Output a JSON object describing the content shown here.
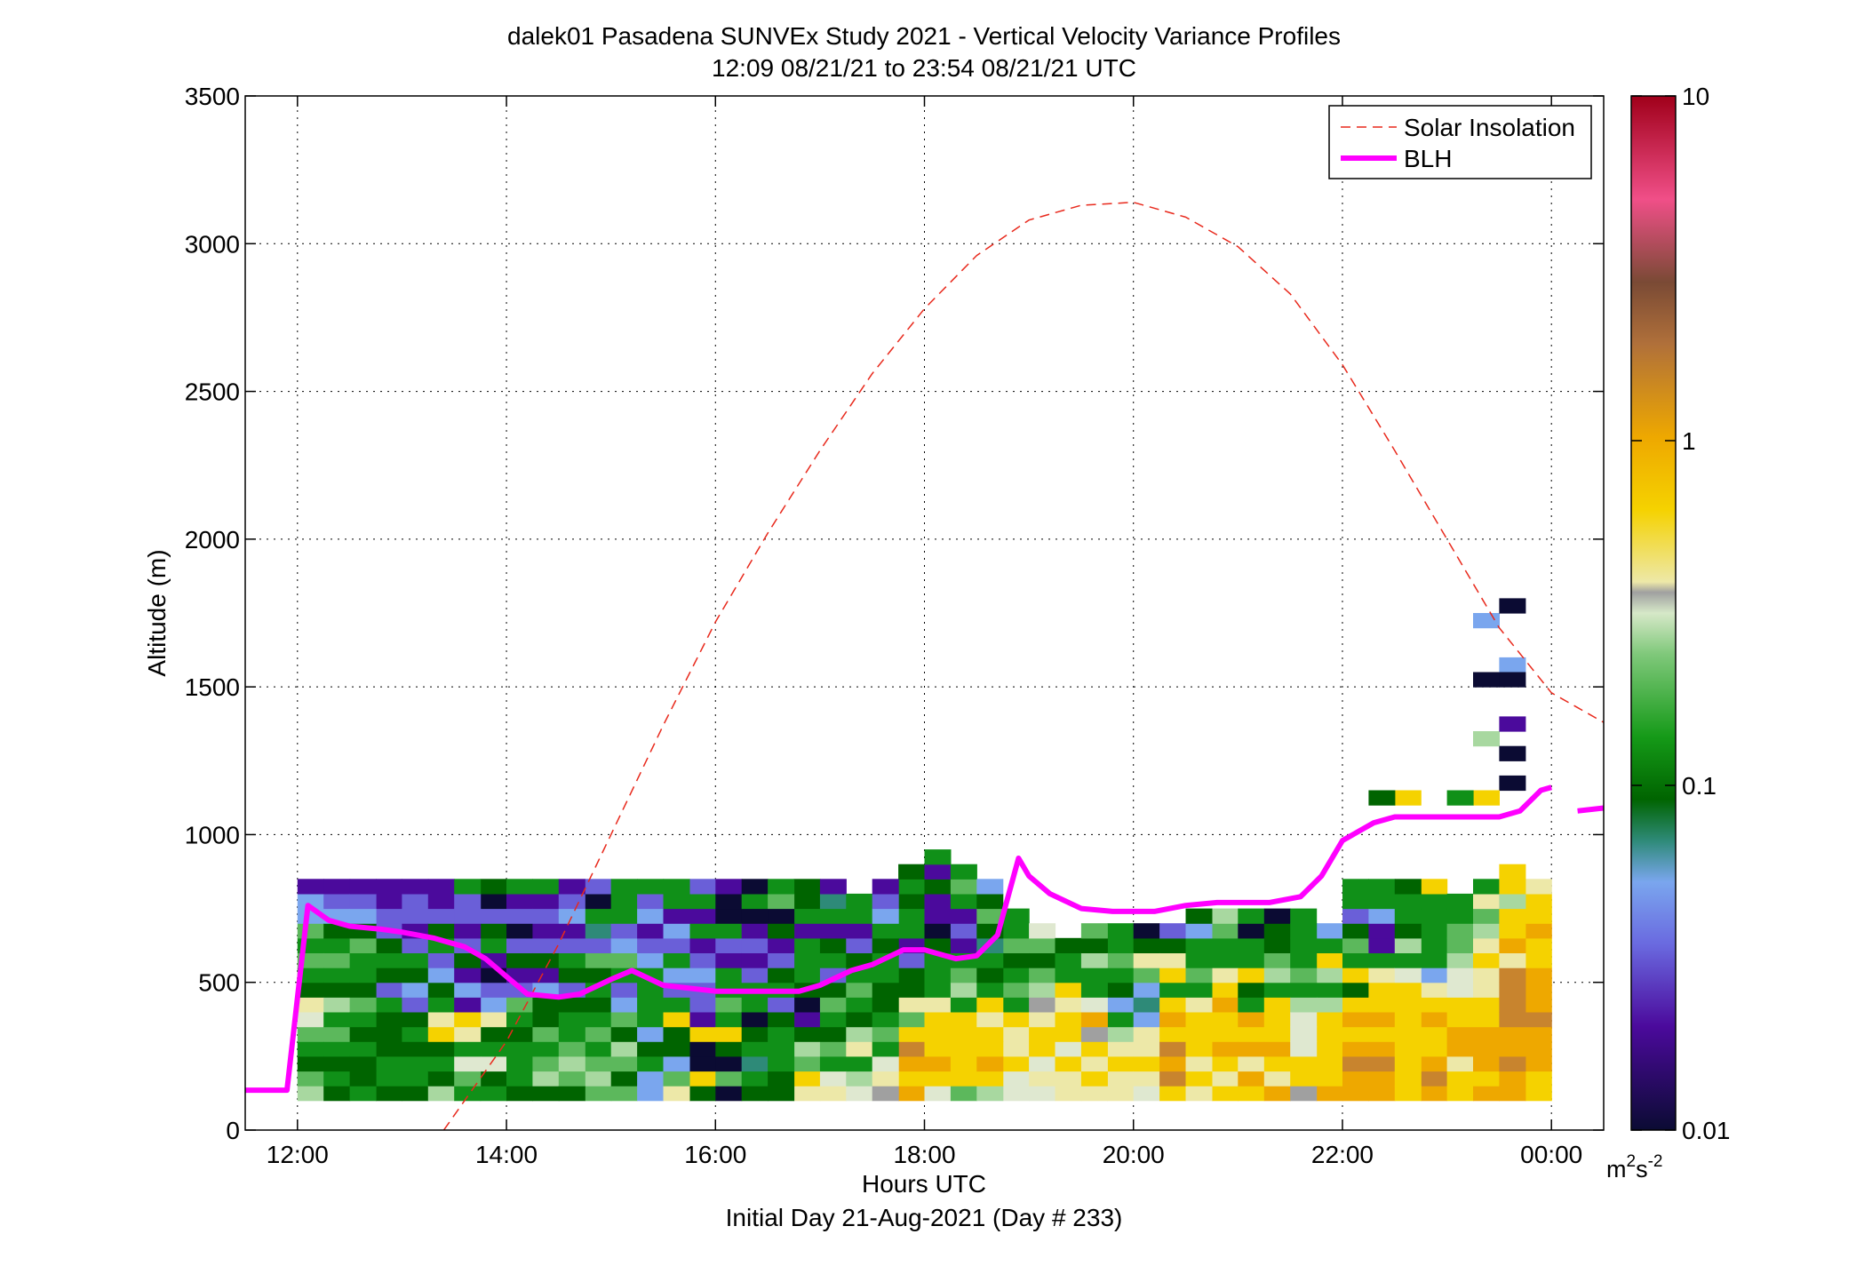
{
  "chart_data": {
    "type": "heatmap",
    "title": "dalek01 Pasadena SUNVEx Study 2021 - Vertical Velocity Variance Profiles",
    "subtitle": "12:09 08/21/21 to 23:54 08/21/21  UTC",
    "xlabel": "Hours UTC",
    "xlabel2": "Initial Day 21-Aug-2021 (Day # 233)",
    "ylabel": "Altitude (m)",
    "xlim": [
      11.5,
      24.5
    ],
    "ylim": [
      0,
      3500
    ],
    "x_ticks": [
      12,
      14,
      16,
      18,
      20,
      22,
      24
    ],
    "x_tick_labels": [
      "12:00",
      "14:00",
      "16:00",
      "18:00",
      "20:00",
      "22:00",
      "00:00"
    ],
    "y_ticks": [
      0,
      500,
      1000,
      1500,
      2000,
      2500,
      3000,
      3500
    ],
    "y_tick_labels": [
      "0",
      "500",
      "1000",
      "1500",
      "2000",
      "2500",
      "3000",
      "3500"
    ],
    "grid": true,
    "legend_position": "top-right",
    "colorbar": {
      "scale": "log",
      "range": [
        0.01,
        10
      ],
      "tick_values": [
        0.01,
        0.1,
        1,
        10
      ],
      "tick_labels": [
        "0.01",
        "0.1",
        "1",
        "10"
      ],
      "unit_base": "m",
      "unit_sup1": "2",
      "unit_mid": "s",
      "unit_sup2": "-2"
    },
    "series": [
      {
        "name": "Solar Insolation",
        "style": "dashed",
        "color": "#e8291c",
        "x": [
          13.4,
          14.0,
          14.5,
          15.0,
          15.5,
          16.0,
          16.5,
          17.0,
          17.5,
          18.0,
          18.5,
          19.0,
          19.5,
          20.0,
          20.5,
          21.0,
          21.5,
          22.0,
          22.5,
          23.0,
          23.5,
          24.0,
          24.5
        ],
        "y": [
          0,
          300,
          630,
          1000,
          1370,
          1720,
          2020,
          2300,
          2560,
          2780,
          2960,
          3080,
          3130,
          3140,
          3090,
          2990,
          2830,
          2590,
          2300,
          2000,
          1700,
          1480,
          1380
        ]
      },
      {
        "name": "BLH",
        "style": "solid",
        "color": "#ff00ff",
        "x": [
          11.5,
          11.9,
          12.1,
          12.3,
          12.5,
          12.8,
          13.0,
          13.3,
          13.6,
          13.8,
          14.0,
          14.2,
          14.5,
          14.7,
          15.0,
          15.2,
          15.5,
          16.0,
          16.5,
          16.8,
          17.0,
          17.3,
          17.5,
          17.8,
          18.0,
          18.3,
          18.5,
          18.7,
          18.9,
          19.0,
          19.2,
          19.5,
          19.8,
          20.0,
          20.2,
          20.5,
          20.8,
          21.0,
          21.3,
          21.6,
          21.8,
          22.0,
          22.3,
          22.5,
          22.8,
          23.0,
          23.3,
          23.5,
          23.7,
          23.9,
          24.0
        ],
        "y": [
          135,
          135,
          760,
          710,
          690,
          680,
          670,
          650,
          620,
          580,
          520,
          460,
          450,
          460,
          510,
          540,
          490,
          470,
          470,
          470,
          490,
          540,
          560,
          610,
          610,
          580,
          590,
          660,
          920,
          860,
          800,
          750,
          740,
          740,
          740,
          760,
          770,
          770,
          770,
          790,
          860,
          980,
          1040,
          1060,
          1060,
          1060,
          1060,
          1060,
          1080,
          1150,
          1160
        ]
      },
      {
        "name": "",
        "style": "solid",
        "color": "#ff00ff",
        "x": [
          24.25,
          24.5
        ],
        "y": [
          1080,
          1090
        ]
      }
    ],
    "heatmap_bin_width_hours": 0.25,
    "heatmap_bin_height_m": 50,
    "heatmap_note": "cell values in m^2 s^-2 (log colour scale); cells listed as [start_hour, bottom_altitude_m, value]",
    "heatmap_cells": []
  }
}
